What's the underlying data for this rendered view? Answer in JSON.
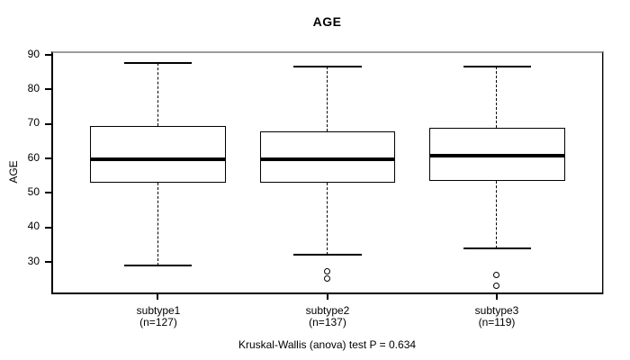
{
  "chart_data": {
    "type": "boxplot",
    "title": "AGE",
    "ylabel": "AGE",
    "xlabel": "",
    "annotation": "Kruskal-Wallis (anova) test P = 0.634",
    "p_value": 0.634,
    "grid": false,
    "legend": false,
    "y_ticks": [
      90,
      80,
      70,
      60,
      50,
      40,
      30
    ],
    "ylim": [
      21.1,
      90.8
    ],
    "line_color": "#000000",
    "frame_top_color": "#9c9c9c",
    "background": "#ffffff",
    "groups": [
      {
        "label": "subtype1",
        "sublabel": "(n=127)",
        "n": 127,
        "whisker_low": 29,
        "q1": 53,
        "median": 60,
        "q3": 69.5,
        "whisker_high": 88,
        "outliers": []
      },
      {
        "label": "subtype2",
        "sublabel": "(n=137)",
        "n": 137,
        "whisker_low": 32,
        "q1": 53,
        "median": 60,
        "q3": 68,
        "whisker_high": 87,
        "outliers": [
          27,
          25
        ]
      },
      {
        "label": "subtype3",
        "sublabel": "(n=119)",
        "n": 119,
        "whisker_low": 34,
        "q1": 53.5,
        "median": 61,
        "q3": 69,
        "whisker_high": 87,
        "outliers": [
          26,
          23
        ]
      }
    ]
  }
}
